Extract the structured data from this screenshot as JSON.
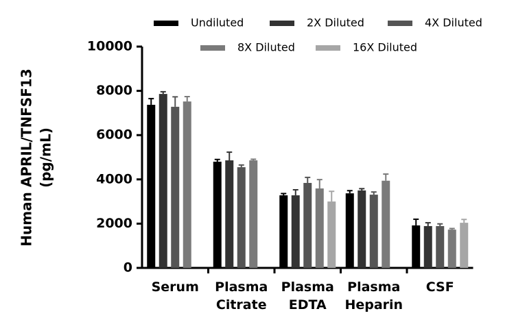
{
  "chart_data": {
    "type": "bar",
    "ylabel": [
      "Human APRIL/TNFSF13",
      "(pg/mL)"
    ],
    "categories": [
      "Serum",
      "Plasma Citrate",
      "Plasma EDTA",
      "Plasma Heparin",
      "CSF"
    ],
    "series": [
      {
        "name": "Undiluted",
        "color": "#000000",
        "values": [
          7370,
          4800,
          3280,
          3370,
          1920
        ],
        "errors": [
          280,
          100,
          80,
          120,
          280
        ]
      },
      {
        "name": "2X Diluted",
        "color": "#333333",
        "values": [
          7860,
          4860,
          3280,
          3500,
          1890
        ],
        "errors": [
          100,
          370,
          250,
          80,
          150
        ]
      },
      {
        "name": "4X Diluted",
        "color": "#555555",
        "values": [
          7280,
          4550,
          3840,
          3310,
          1890
        ],
        "errors": [
          450,
          100,
          250,
          120,
          100
        ]
      },
      {
        "name": "8X Diluted",
        "color": "#7a7a7a",
        "values": [
          7520,
          4860,
          3590,
          3940,
          1730
        ],
        "errors": [
          220,
          50,
          400,
          300,
          50
        ]
      },
      {
        "name": "16X Diluted",
        "color": "#a6a6a6",
        "values": [
          null,
          null,
          3000,
          null,
          2040
        ],
        "errors": [
          null,
          null,
          460,
          null,
          150
        ]
      }
    ],
    "ylim": [
      0,
      10000
    ],
    "yticks": [
      0,
      2000,
      4000,
      6000,
      8000,
      10000
    ]
  }
}
